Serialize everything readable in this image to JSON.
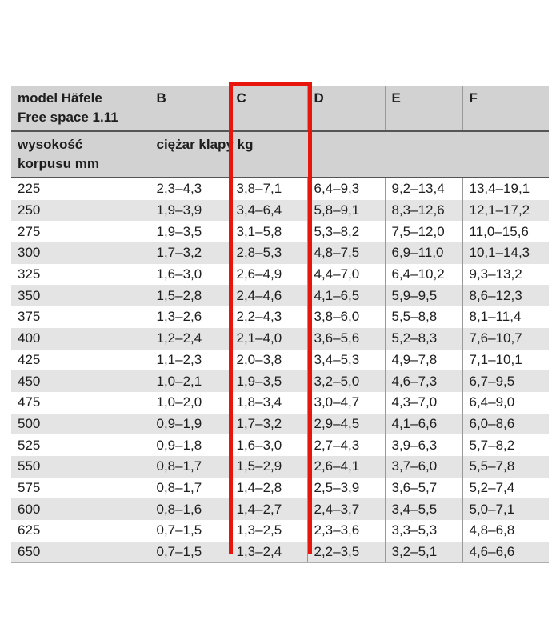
{
  "table": {
    "header": {
      "model_cell": [
        "model Häfele",
        "Free space 1.11"
      ],
      "columns": [
        "B",
        "C",
        "D",
        "E",
        "F"
      ],
      "row2_col1": [
        "wysokość",
        "korpusu mm"
      ],
      "row2_merged": "ciężar klapy kg"
    },
    "highlight": {
      "column": "C",
      "color": "#e8150d"
    },
    "colors": {
      "header_bg": "#d2d2d2",
      "stripe_bg": "#e4e4e4",
      "row_bg": "#ffffff",
      "grid_line": "#999999",
      "heavy_line": "#555555",
      "text": "#1e1e1e"
    },
    "rows": [
      {
        "height_mm": "225",
        "values": [
          "2,3–4,3",
          "3,8–7,1",
          "6,4–9,3",
          "9,2–13,4",
          "13,4–19,1"
        ]
      },
      {
        "height_mm": "250",
        "values": [
          "1,9–3,9",
          "3,4–6,4",
          "5,8–9,1",
          "8,3–12,6",
          "12,1–17,2"
        ]
      },
      {
        "height_mm": "275",
        "values": [
          "1,9–3,5",
          "3,1–5,8",
          "5,3–8,2",
          "7,5–12,0",
          "11,0–15,6"
        ]
      },
      {
        "height_mm": "300",
        "values": [
          "1,7–3,2",
          "2,8–5,3",
          "4,8–7,5",
          "6,9–11,0",
          "10,1–14,3"
        ]
      },
      {
        "height_mm": "325",
        "values": [
          "1,6–3,0",
          "2,6–4,9",
          "4,4–7,0",
          "6,4–10,2",
          "9,3–13,2"
        ]
      },
      {
        "height_mm": "350",
        "values": [
          "1,5–2,8",
          "2,4–4,6",
          "4,1–6,5",
          "5,9–9,5",
          "8,6–12,3"
        ]
      },
      {
        "height_mm": "375",
        "values": [
          "1,3–2,6",
          "2,2–4,3",
          "3,8–6,0",
          "5,5–8,8",
          "8,1–11,4"
        ]
      },
      {
        "height_mm": "400",
        "values": [
          "1,2–2,4",
          "2,1–4,0",
          "3,6–5,6",
          "5,2–8,3",
          "7,6–10,7"
        ]
      },
      {
        "height_mm": "425",
        "values": [
          "1,1–2,3",
          "2,0–3,8",
          "3,4–5,3",
          "4,9–7,8",
          "7,1–10,1"
        ]
      },
      {
        "height_mm": "450",
        "values": [
          "1,0–2,1",
          "1,9–3,5",
          "3,2–5,0",
          "4,6–7,3",
          "6,7–9,5"
        ]
      },
      {
        "height_mm": "475",
        "values": [
          "1,0–2,0",
          "1,8–3,4",
          "3,0–4,7",
          "4,3–7,0",
          "6,4–9,0"
        ]
      },
      {
        "height_mm": "500",
        "values": [
          "0,9–1,9",
          "1,7–3,2",
          "2,9–4,5",
          "4,1–6,6",
          "6,0–8,6"
        ]
      },
      {
        "height_mm": "525",
        "values": [
          "0,9–1,8",
          "1,6–3,0",
          "2,7–4,3",
          "3,9–6,3",
          "5,7–8,2"
        ]
      },
      {
        "height_mm": "550",
        "values": [
          "0,8–1,7",
          "1,5–2,9",
          "2,6–4,1",
          "3,7–6,0",
          "5,5–7,8"
        ]
      },
      {
        "height_mm": "575",
        "values": [
          "0,8–1,7",
          "1,4–2,8",
          "2,5–3,9",
          "3,6–5,7",
          "5,2–7,4"
        ]
      },
      {
        "height_mm": "600",
        "values": [
          "0,8–1,6",
          "1,4–2,7",
          "2,4–3,7",
          "3,4–5,5",
          "5,0–7,1"
        ]
      },
      {
        "height_mm": "625",
        "values": [
          "0,7–1,5",
          "1,3–2,5",
          "2,3–3,6",
          "3,3–5,3",
          "4,8–6,8"
        ]
      },
      {
        "height_mm": "650",
        "values": [
          "0,7–1,5",
          "1,3–2,4",
          "2,2–3,5",
          "3,2–5,1",
          "4,6–6,6"
        ]
      }
    ]
  }
}
